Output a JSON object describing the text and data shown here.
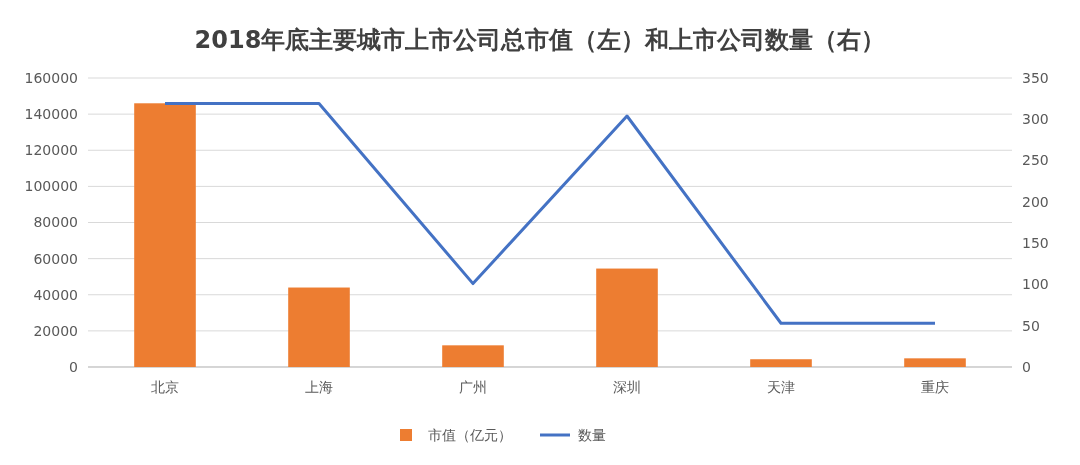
{
  "chart_data": {
    "type": "bar",
    "title": "2018年底主要城市上市公司总市值（左）和上市公司数量（右）",
    "categories": [
      "北京",
      "上海",
      "广州",
      "深圳",
      "天津",
      "重庆"
    ],
    "series": [
      {
        "name": "市值（亿元）",
        "color": "#ed7d31",
        "values": [
          146000,
          44000,
          12000,
          54500,
          4300,
          4800
        ]
      },
      {
        "name": "数量",
        "type": "line",
        "axis": "y2",
        "color": "#4472c4",
        "values": [
          319,
          319,
          101,
          304,
          53,
          53
        ]
      }
    ],
    "ylim": [
      0,
      160000
    ],
    "yticks": [
      0,
      20000,
      40000,
      60000,
      80000,
      100000,
      120000,
      140000,
      160000
    ],
    "y2lim": [
      0,
      350
    ],
    "y2ticks": [
      0,
      50,
      100,
      150,
      200,
      250,
      300,
      350
    ],
    "grid": "y",
    "legend": "bottom",
    "marker": "none",
    "line_style": "solid"
  }
}
